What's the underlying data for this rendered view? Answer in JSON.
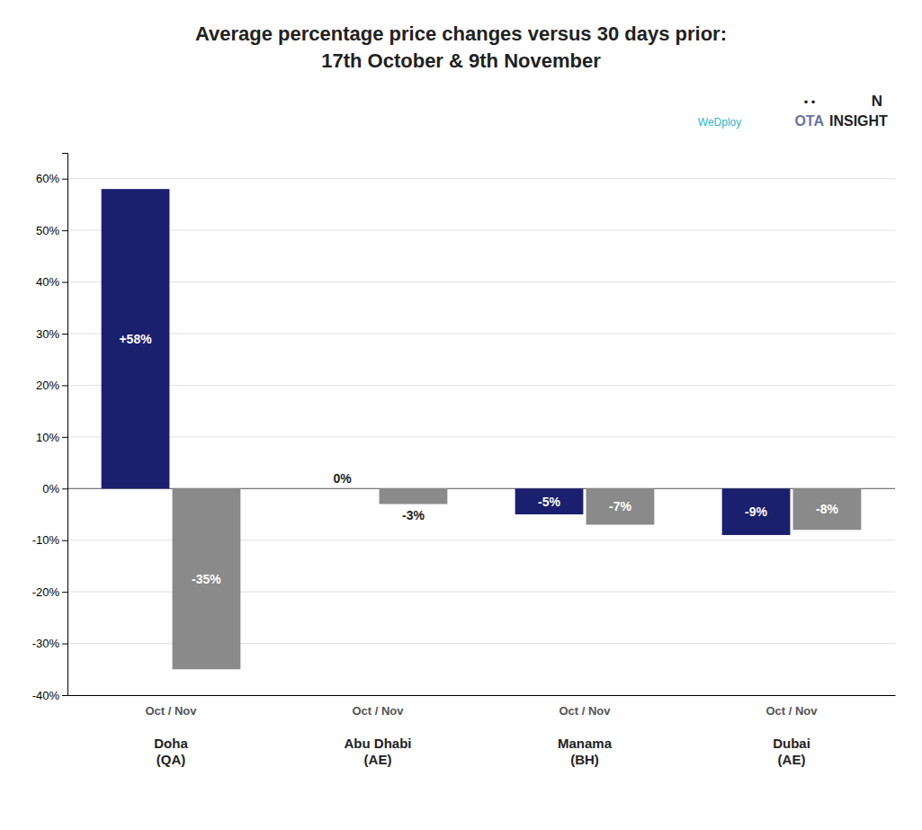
{
  "chart_data": {
    "type": "bar",
    "title": "Average percentage price changes versus 30 days prior:\n17th October & 9th November",
    "categories": [
      "Doha\n(QA)",
      "Abu Dhabi\n(AE)",
      "Manama\n(BH)",
      "Dubai\n(AE)"
    ],
    "series": [
      {
        "color": "#1a1f6e",
        "values": [
          58,
          0,
          -5,
          -9
        ],
        "value_labels": [
          "+58%",
          "0%",
          "-5%",
          "-9%"
        ]
      },
      {
        "color": "#8a8a8a",
        "values": [
          -35,
          -3,
          -7,
          -8
        ],
        "value_labels": [
          "-35%",
          "-3%",
          "-7%",
          "-8%"
        ]
      }
    ],
    "ylim": [
      -40,
      65
    ],
    "yticks": [
      {
        "value": -40,
        "label": "-40%"
      },
      {
        "value": -30,
        "label": "-30%"
      },
      {
        "value": -20,
        "label": "-20%"
      },
      {
        "value": -10,
        "label": "-10%"
      },
      {
        "value": 0,
        "label": "0%"
      },
      {
        "value": 10,
        "label": "10%"
      },
      {
        "value": 20,
        "label": "20%"
      },
      {
        "value": 30,
        "label": "30%"
      },
      {
        "value": 40,
        "label": "40%"
      },
      {
        "value": 50,
        "label": "50%"
      },
      {
        "value": 60,
        "label": "60%"
      }
    ],
    "grid": true,
    "data_labels": true,
    "annotations": [
      "WeDploy",
      "OTA",
      "INSIGHT",
      "• •",
      "N",
      "Oct / Nov"
    ]
  }
}
